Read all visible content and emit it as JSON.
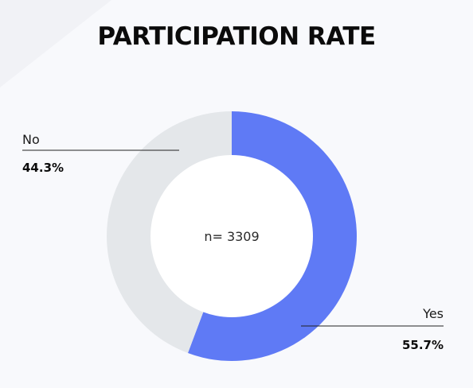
{
  "chart_data": {
    "type": "pie",
    "title": "PARTICIPATION RATE",
    "center_label": "n= 3309",
    "donut": true,
    "slices": [
      {
        "label": "Yes",
        "value": 55.7,
        "value_label": "55.7%",
        "color": "#5f7af5"
      },
      {
        "label": "No",
        "value": 44.3,
        "value_label": "44.3%",
        "color": "#e4e7ea"
      }
    ]
  }
}
